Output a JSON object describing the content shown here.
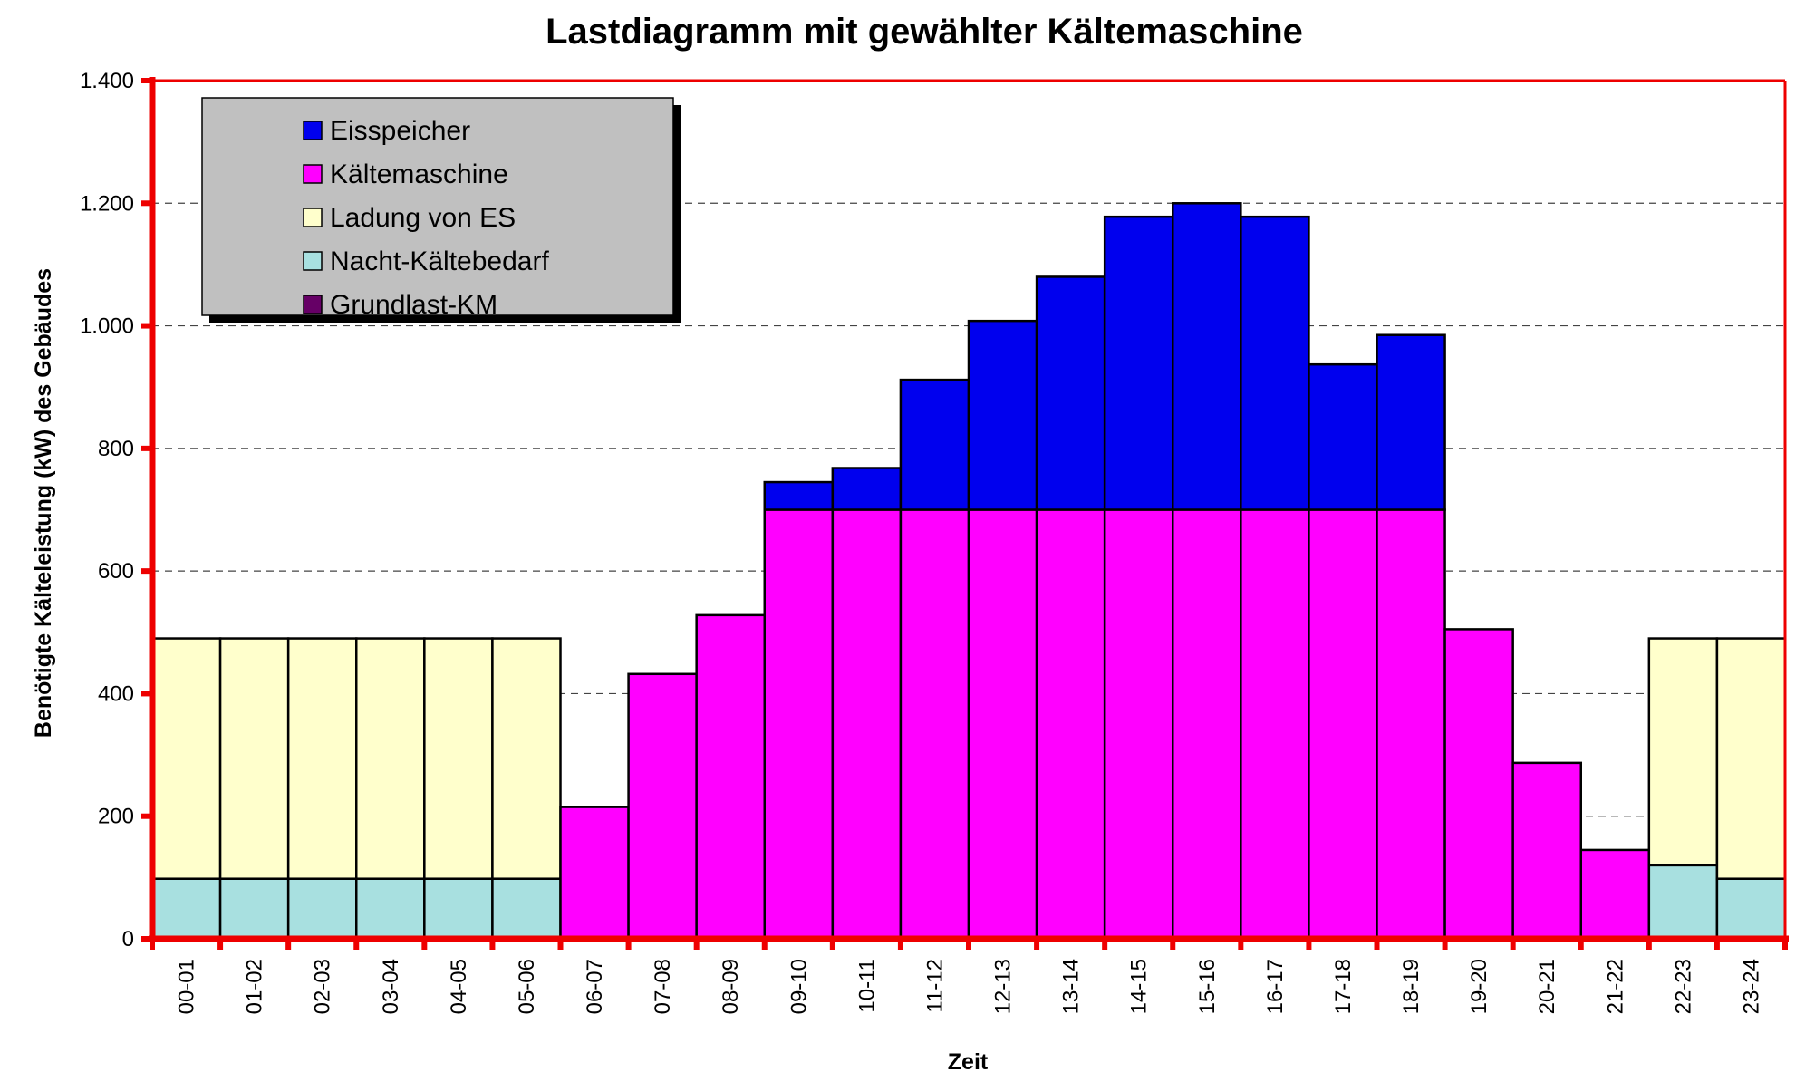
{
  "chart_data": {
    "type": "bar",
    "stacked": true,
    "title": "Lastdiagramm mit gewählter Kältemaschine",
    "xlabel": "Zeit",
    "ylabel": "Benötigte Kälteleistung (kW) des Gebäudes",
    "ylim": [
      0,
      1400
    ],
    "yticks": [
      0,
      200,
      400,
      600,
      800,
      1000,
      1200,
      1400
    ],
    "ytick_labels": [
      "0",
      "200",
      "400",
      "600",
      "800",
      "1.000",
      "1.200",
      "1.400"
    ],
    "grid": "horizontal dashed",
    "legend_position": "top-left",
    "categories": [
      "00-01",
      "01-02",
      "02-03",
      "03-04",
      "04-05",
      "05-06",
      "06-07",
      "07-08",
      "08-09",
      "09-10",
      "10-11",
      "11-12",
      "12-13",
      "13-14",
      "14-15",
      "15-16",
      "16-17",
      "17-18",
      "18-19",
      "19-20",
      "20-21",
      "21-22",
      "22-23",
      "23-24"
    ],
    "series": [
      {
        "name": "Grundlast-KM",
        "color": "#660066",
        "values": [
          0,
          0,
          0,
          0,
          0,
          0,
          0,
          0,
          0,
          0,
          0,
          0,
          0,
          0,
          0,
          0,
          0,
          0,
          0,
          0,
          0,
          0,
          0,
          0
        ]
      },
      {
        "name": "Nacht-Kältebedarf",
        "color": "#a8e0e0",
        "values": [
          98,
          98,
          98,
          98,
          98,
          98,
          0,
          0,
          0,
          0,
          0,
          0,
          0,
          0,
          0,
          0,
          0,
          0,
          0,
          0,
          0,
          0,
          120,
          98
        ]
      },
      {
        "name": "Ladung von ES",
        "color": "#ffffcc",
        "values": [
          392,
          392,
          392,
          392,
          392,
          392,
          0,
          0,
          0,
          0,
          0,
          0,
          0,
          0,
          0,
          0,
          0,
          0,
          0,
          0,
          0,
          0,
          370,
          392
        ]
      },
      {
        "name": "Kältemaschine",
        "color": "#ff00ff",
        "values": [
          0,
          0,
          0,
          0,
          0,
          0,
          215,
          432,
          528,
          700,
          700,
          700,
          700,
          700,
          700,
          700,
          700,
          700,
          700,
          505,
          287,
          145,
          0,
          0
        ]
      },
      {
        "name": "Eisspeicher",
        "color": "#0000ee",
        "values": [
          0,
          0,
          0,
          0,
          0,
          0,
          0,
          0,
          0,
          45,
          68,
          212,
          308,
          380,
          478,
          500,
          478,
          237,
          285,
          0,
          0,
          0,
          0,
          0
        ]
      }
    ],
    "legend_order": [
      "Eisspeicher",
      "Kältemaschine",
      "Ladung von ES",
      "Nacht-Kältebedarf",
      "Grundlast-KM"
    ],
    "colors": {
      "axis": "#ee0000",
      "grid": "#444444",
      "legend_bg": "#c0c0c0"
    }
  }
}
